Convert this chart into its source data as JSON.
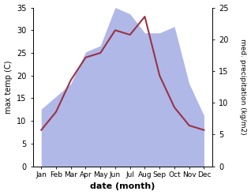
{
  "months": [
    "Jan",
    "Feb",
    "Mar",
    "Apr",
    "May",
    "Jun",
    "Jul",
    "Aug",
    "Sep",
    "Oct",
    "Nov",
    "Dec"
  ],
  "temperature": [
    8,
    12,
    19,
    24,
    25,
    30,
    29,
    33,
    20,
    13,
    9,
    8
  ],
  "precipitation": [
    9,
    11,
    13,
    18,
    19,
    25,
    24,
    21,
    21,
    22,
    13,
    8
  ],
  "temp_color": "#993344",
  "precip_color": "#b0b8e8",
  "background_color": "#ffffff",
  "ylabel_left": "max temp (C)",
  "ylabel_right": "med. precipitation (kg/m2)",
  "xlabel": "date (month)",
  "ylim_left": [
    0,
    35
  ],
  "ylim_right": [
    0,
    25
  ],
  "yticks_left": [
    0,
    5,
    10,
    15,
    20,
    25,
    30,
    35
  ],
  "yticks_right": [
    0,
    5,
    10,
    15,
    20,
    25
  ]
}
